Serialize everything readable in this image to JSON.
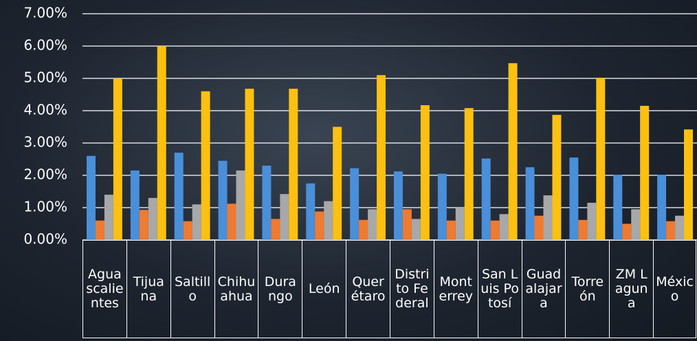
{
  "chart_data": {
    "type": "bar",
    "categories": [
      "Aguascalientes",
      "Tijuana",
      "Saltillo",
      "Chihuahua",
      "Durango",
      "León",
      "Querétaro",
      "Distrito Federal",
      "Monterrey",
      "San Luis Potosí",
      "Guadalajara",
      "Torreón",
      "ZM Laguna",
      "México"
    ],
    "series": [
      {
        "color": "#4a8fd9",
        "values": [
          2.6,
          2.15,
          2.7,
          2.45,
          2.3,
          1.75,
          2.22,
          2.12,
          2.05,
          2.52,
          2.25,
          2.55,
          2.02,
          2.02
        ]
      },
      {
        "color": "#f07a30",
        "values": [
          0.6,
          0.93,
          0.58,
          1.12,
          0.65,
          0.88,
          0.62,
          0.95,
          0.6,
          0.6,
          0.75,
          0.62,
          0.5,
          0.58
        ]
      },
      {
        "color": "#a8a8a8",
        "values": [
          1.4,
          1.3,
          1.1,
          2.15,
          1.42,
          1.2,
          0.95,
          0.65,
          1.0,
          0.8,
          1.38,
          1.15,
          0.95,
          0.75
        ]
      },
      {
        "color": "#fcc010",
        "values": [
          5.0,
          6.0,
          4.6,
          4.68,
          4.68,
          3.5,
          5.1,
          4.17,
          4.08,
          5.47,
          3.87,
          5.02,
          4.15,
          3.42
        ]
      }
    ],
    "ylim": [
      0,
      7
    ],
    "yticks": [
      {
        "value": 0,
        "label": "0.00%"
      },
      {
        "value": 1,
        "label": "1.00%"
      },
      {
        "value": 2,
        "label": "2.00%"
      },
      {
        "value": 3,
        "label": "3.00%"
      },
      {
        "value": 4,
        "label": "4.00%"
      },
      {
        "value": 5,
        "label": "5.00%"
      },
      {
        "value": 6,
        "label": "6.00%"
      },
      {
        "value": 7,
        "label": "7.00%"
      }
    ],
    "grid": true
  }
}
